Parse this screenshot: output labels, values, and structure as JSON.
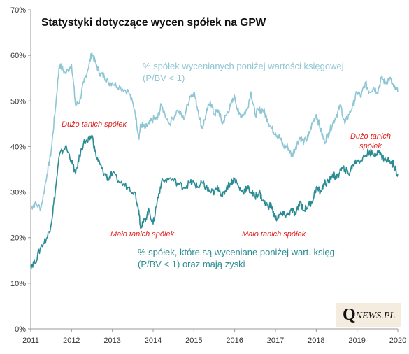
{
  "chart_data": {
    "type": "line",
    "title": "Statystyki dotyczące wycen spółek na GPW",
    "x_ticks": [
      "2011",
      "2012",
      "2013",
      "2014",
      "2015",
      "2016",
      "2017",
      "2018",
      "2019",
      "2020"
    ],
    "y_ticks": [
      "0%",
      "10%",
      "20%",
      "30%",
      "40%",
      "50%",
      "60%",
      "70%"
    ],
    "xlim": [
      2011,
      2020
    ],
    "ylim": [
      0,
      70
    ],
    "grid": false,
    "series": [
      {
        "name": "% spółek wycenianych poniżej wartości księgowej (P/BV < 1)",
        "color": "#8fc6d4",
        "x": [
          2011.0,
          2011.1,
          2011.25,
          2011.4,
          2011.5,
          2011.6,
          2011.7,
          2011.85,
          2012.0,
          2012.1,
          2012.2,
          2012.3,
          2012.4,
          2012.5,
          2012.6,
          2012.7,
          2012.8,
          2012.9,
          2013.0,
          2013.2,
          2013.4,
          2013.55,
          2013.65,
          2013.7,
          2013.8,
          2013.9,
          2014.0,
          2014.1,
          2014.2,
          2014.4,
          2014.6,
          2014.75,
          2014.9,
          2015.0,
          2015.1,
          2015.2,
          2015.3,
          2015.4,
          2015.5,
          2015.6,
          2015.7,
          2015.8,
          2015.9,
          2016.0,
          2016.1,
          2016.2,
          2016.3,
          2016.4,
          2016.5,
          2016.6,
          2016.7,
          2016.8,
          2016.9,
          2017.0,
          2017.1,
          2017.2,
          2017.3,
          2017.4,
          2017.5,
          2017.6,
          2017.7,
          2017.8,
          2017.9,
          2018.0,
          2018.1,
          2018.2,
          2018.3,
          2018.4,
          2018.5,
          2018.6,
          2018.7,
          2018.8,
          2018.9,
          2019.0,
          2019.1,
          2019.2,
          2019.3,
          2019.4,
          2019.5,
          2019.6,
          2019.7,
          2019.8,
          2019.9,
          2020.0
        ],
        "values": [
          26.5,
          27.5,
          26.5,
          34,
          39,
          48,
          58,
          56,
          58,
          49,
          50,
          54,
          57,
          60.5,
          58,
          56,
          55.5,
          54,
          54,
          53,
          52,
          48,
          42,
          45,
          44,
          45,
          46,
          46,
          49,
          45,
          48,
          46,
          51,
          52,
          48,
          44,
          47,
          50,
          47,
          48,
          45,
          47,
          49,
          51,
          47,
          47,
          48,
          52,
          47,
          48,
          48,
          46,
          44,
          43,
          42,
          40,
          40,
          38,
          40,
          42,
          41,
          42,
          45,
          47,
          44,
          41,
          43,
          45,
          47,
          49,
          45,
          47,
          49,
          52,
          51,
          54,
          52,
          53,
          52,
          55,
          54,
          55,
          53,
          52
        ]
      },
      {
        "name": "% spółek, które są wyceniane poniżej wart. księg. (P/BV < 1) oraz mają zyski",
        "color": "#2c8c94",
        "x": [
          2011.0,
          2011.1,
          2011.25,
          2011.4,
          2011.5,
          2011.6,
          2011.7,
          2011.85,
          2012.0,
          2012.1,
          2012.2,
          2012.3,
          2012.4,
          2012.5,
          2012.6,
          2012.7,
          2012.8,
          2012.9,
          2013.0,
          2013.2,
          2013.4,
          2013.55,
          2013.65,
          2013.7,
          2013.8,
          2013.9,
          2014.0,
          2014.1,
          2014.2,
          2014.4,
          2014.6,
          2014.75,
          2014.9,
          2015.0,
          2015.1,
          2015.2,
          2015.3,
          2015.4,
          2015.5,
          2015.6,
          2015.7,
          2015.8,
          2015.9,
          2016.0,
          2016.1,
          2016.2,
          2016.3,
          2016.4,
          2016.5,
          2016.6,
          2016.7,
          2016.8,
          2016.9,
          2017.0,
          2017.1,
          2017.2,
          2017.3,
          2017.4,
          2017.5,
          2017.6,
          2017.7,
          2017.8,
          2017.9,
          2018.0,
          2018.1,
          2018.2,
          2018.3,
          2018.4,
          2018.5,
          2018.6,
          2018.7,
          2018.8,
          2018.9,
          2019.0,
          2019.1,
          2019.2,
          2019.3,
          2019.4,
          2019.5,
          2019.6,
          2019.7,
          2019.8,
          2019.9,
          2020.0
        ],
        "values": [
          14,
          14.5,
          18,
          20,
          23,
          30,
          38,
          40,
          37,
          34,
          38,
          41,
          41,
          42.5,
          38,
          36,
          34,
          33,
          34,
          32,
          31,
          30,
          26,
          22,
          24,
          26,
          23,
          28,
          32,
          33,
          32,
          31,
          32,
          32,
          31,
          32,
          31,
          30,
          30,
          31,
          29,
          31,
          32,
          33,
          31,
          30,
          31,
          30,
          29,
          30,
          28,
          27,
          27,
          24,
          25,
          25,
          25,
          26,
          25,
          28,
          26,
          27,
          28,
          31,
          30,
          32,
          32,
          34,
          33,
          35,
          35,
          34,
          36,
          37,
          37,
          38,
          39,
          38,
          39,
          38,
          37,
          37,
          36,
          34
        ]
      }
    ],
    "annotations": [
      {
        "text": "Dużo tanich spółek",
        "color": "#e0201c"
      },
      {
        "text": "Mało tanich spółek",
        "color": "#e0201c"
      },
      {
        "text": "Mało tanich spółek",
        "color": "#e0201c"
      },
      {
        "text": "Dużo tanich spółek",
        "color": "#e0201c"
      }
    ]
  },
  "labels": {
    "series1_line1": "% spółek wycenianych poniżej wartości księgowej",
    "series1_line2": "(P/BV < 1)",
    "series2_line1": "% spółek, które są wyceniane poniżej wart. księg.",
    "series2_line2": "(P/BV < 1) oraz mają zyski"
  },
  "logo": {
    "initial": "Q",
    "rest": "NEWS.PL"
  },
  "colors": {
    "light_series": "#8fc6d4",
    "dark_series": "#2c8c94",
    "annotation": "#e0201c",
    "logo_bg": "#f4eddf"
  }
}
